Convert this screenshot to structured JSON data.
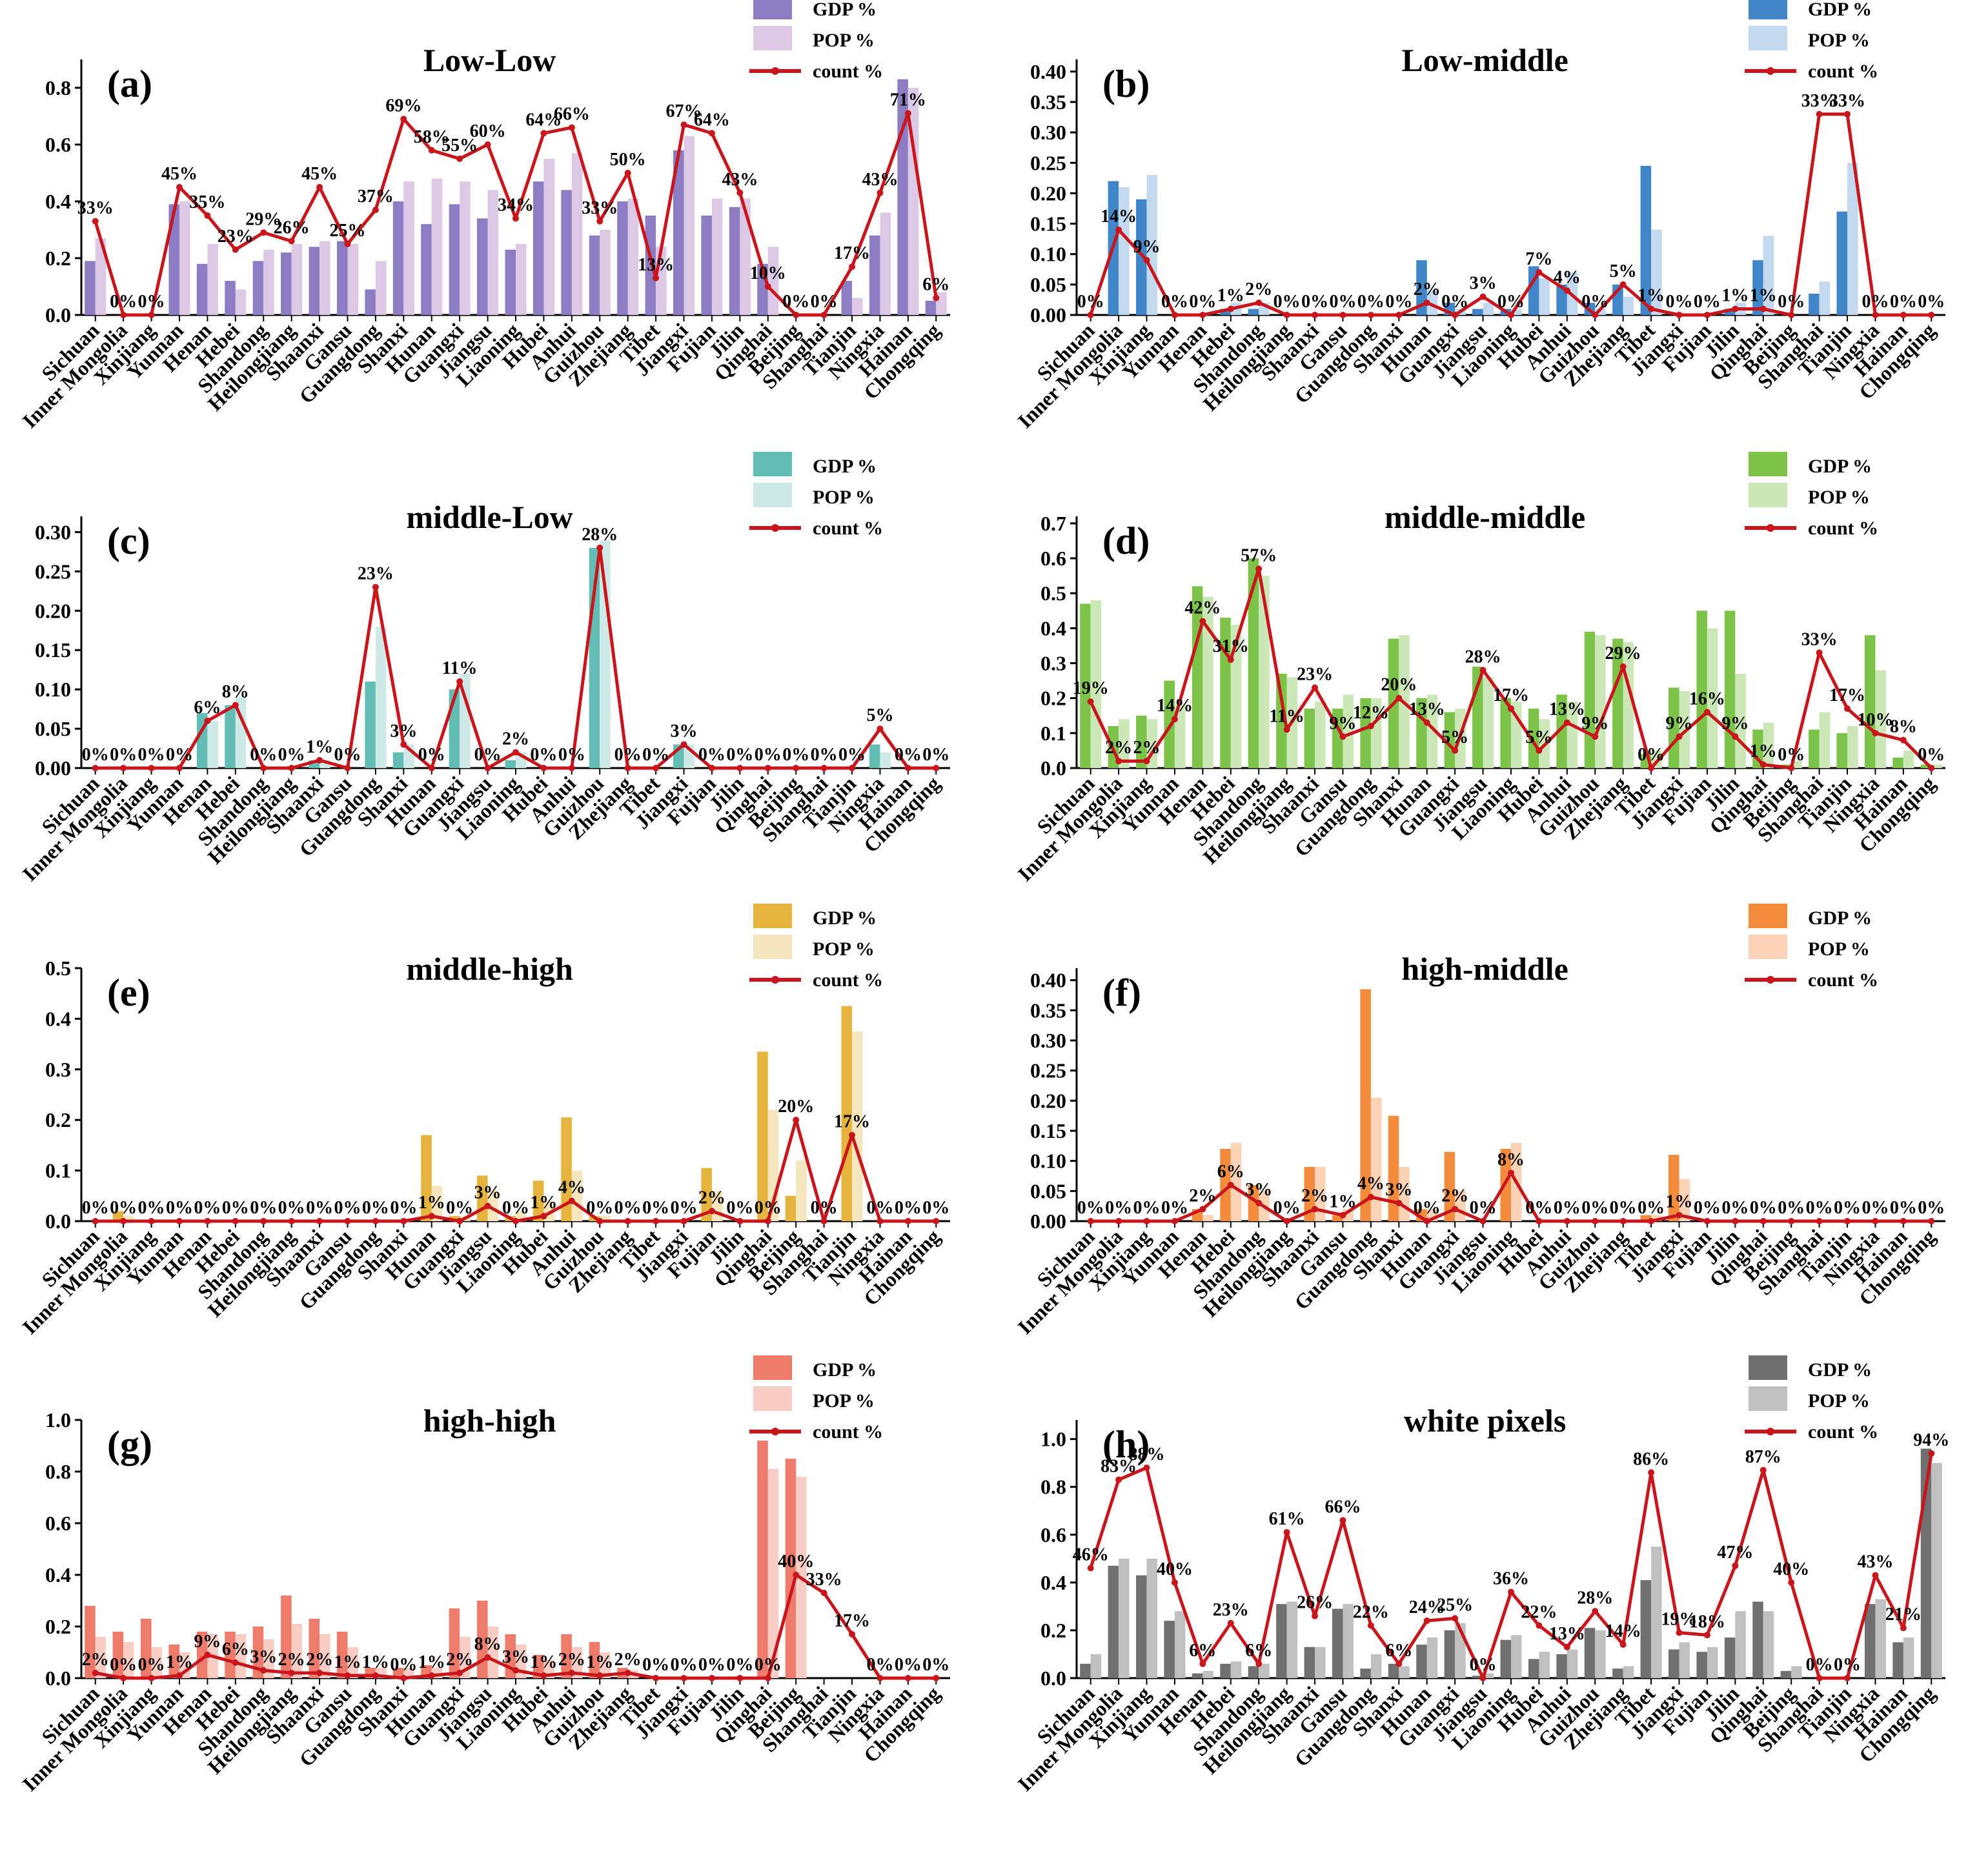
{
  "provinces": [
    "Sichuan",
    "Inner Mongolia",
    "Xinjiang",
    "Yunnan",
    "Henan",
    "Hebei",
    "Shandong",
    "Heilongjiang",
    "Shaanxi",
    "Gansu",
    "Guangdong",
    "Shanxi",
    "Hunan",
    "Guangxi",
    "Jiangsu",
    "Liaoning",
    "Hubei",
    "Anhui",
    "Guizhou",
    "Zhejiang",
    "Tibet",
    "Jiangxi",
    "Fujian",
    "Jilin",
    "Qinghai",
    "Beijing",
    "Shanghai",
    "Tianjin",
    "Ningxia",
    "Hainan",
    "Chongqing"
  ],
  "chart_data": [
    {
      "id": "a",
      "type": "bar",
      "panel_label": "(a)",
      "title": "Low-Low",
      "legend": [
        "GDP %",
        "POP %",
        "count %"
      ],
      "colors": {
        "gdp": "#8c7cc4",
        "pop": "#dcc9e6",
        "count": "#c8161c"
      },
      "ylim": [
        0,
        0.9
      ],
      "yticks": [
        "0.0",
        "0.2",
        "0.4",
        "0.6",
        "0.8"
      ],
      "ytick_values": [
        0,
        0.2,
        0.4,
        0.6,
        0.8
      ],
      "gdp": [
        0.19,
        0.0,
        0.0,
        0.39,
        0.18,
        0.12,
        0.19,
        0.22,
        0.24,
        0.26,
        0.09,
        0.4,
        0.32,
        0.39,
        0.34,
        0.23,
        0.47,
        0.44,
        0.28,
        0.4,
        0.35,
        0.58,
        0.35,
        0.38,
        0.18,
        0.0,
        0.0,
        0.12,
        0.28,
        0.83,
        0.05
      ],
      "pop": [
        0.27,
        0.0,
        0.0,
        0.4,
        0.25,
        0.09,
        0.23,
        0.25,
        0.26,
        0.25,
        0.19,
        0.47,
        0.48,
        0.47,
        0.44,
        0.25,
        0.55,
        0.57,
        0.3,
        0.41,
        0.24,
        0.63,
        0.41,
        0.41,
        0.24,
        0.0,
        0.0,
        0.06,
        0.36,
        0.8,
        0.08
      ],
      "count": [
        0.33,
        0.0,
        0.0,
        0.45,
        0.35,
        0.23,
        0.29,
        0.26,
        0.45,
        0.25,
        0.37,
        0.69,
        0.58,
        0.55,
        0.6,
        0.34,
        0.64,
        0.66,
        0.33,
        0.5,
        0.13,
        0.67,
        0.64,
        0.43,
        0.1,
        0.0,
        0.0,
        0.17,
        0.43,
        0.71,
        0.06
      ],
      "count_labels": [
        "33%",
        "0%",
        "0%",
        "45%",
        "35%",
        "23%",
        "29%",
        "26%",
        "45%",
        "25%",
        "37%",
        "69%",
        "58%",
        "55%",
        "60%",
        "34%",
        "64%",
        "66%",
        "33%",
        "50%",
        "13%",
        "67%",
        "64%",
        "43%",
        "10%",
        "0%",
        "0%",
        "17%",
        "43%",
        "71%",
        "6%"
      ]
    },
    {
      "id": "b",
      "type": "bar",
      "panel_label": "(b)",
      "title": "Low-middle",
      "legend": [
        "GDP %",
        "POP %",
        "count %"
      ],
      "colors": {
        "gdp": "#3f86c8",
        "pop": "#c3d9f0",
        "count": "#c8161c"
      },
      "ylim": [
        0,
        0.42
      ],
      "yticks": [
        "0.00",
        "0.05",
        "0.10",
        "0.15",
        "0.20",
        "0.25",
        "0.30",
        "0.35",
        "0.40"
      ],
      "ytick_values": [
        0,
        0.05,
        0.1,
        0.15,
        0.2,
        0.25,
        0.3,
        0.35,
        0.4
      ],
      "gdp": [
        0.0,
        0.22,
        0.19,
        0.0,
        0.0,
        0.01,
        0.01,
        0.0,
        0.0,
        0.0,
        0.0,
        0.0,
        0.09,
        0.02,
        0.01,
        0.01,
        0.08,
        0.05,
        0.02,
        0.05,
        0.245,
        0.0,
        0.0,
        0.01,
        0.09,
        0.0,
        0.035,
        0.17,
        0.0,
        0.0,
        0.0
      ],
      "pop": [
        0.0,
        0.21,
        0.23,
        0.0,
        0.0,
        0.02,
        0.02,
        0.0,
        0.0,
        0.0,
        0.0,
        0.0,
        0.04,
        0.01,
        0.02,
        0.01,
        0.06,
        0.07,
        0.01,
        0.03,
        0.14,
        0.0,
        0.0,
        0.02,
        0.13,
        0.0,
        0.055,
        0.25,
        0.0,
        0.0,
        0.0
      ],
      "count": [
        0.0,
        0.14,
        0.09,
        0.0,
        0.0,
        0.01,
        0.02,
        0.0,
        0.0,
        0.0,
        0.0,
        0.0,
        0.02,
        0.0,
        0.03,
        0.0,
        0.07,
        0.04,
        0.0,
        0.05,
        0.01,
        0.0,
        0.0,
        0.01,
        0.01,
        0.0,
        0.33,
        0.33,
        0.0,
        0.0,
        0.0
      ],
      "count_labels": [
        "0%",
        "14%",
        "9%",
        "0%",
        "0%",
        "1%",
        "2%",
        "0%",
        "0%",
        "0%",
        "0%",
        "0%",
        "2%",
        "0%",
        "3%",
        "0%",
        "7%",
        "4%",
        "0%",
        "5%",
        "1%",
        "0%",
        "0%",
        "1%",
        "1%",
        "0%",
        "33%",
        "33%",
        "0%",
        "0%",
        "0%"
      ]
    },
    {
      "id": "c",
      "type": "bar",
      "panel_label": "(c)",
      "title": "middle-Low",
      "legend": [
        "GDP %",
        "POP %",
        "count %"
      ],
      "colors": {
        "gdp": "#62bdb4",
        "pop": "#cdeae6",
        "count": "#c8161c"
      },
      "ylim": [
        0,
        0.32
      ],
      "yticks": [
        "0.00",
        "0.05",
        "0.10",
        "0.15",
        "0.20",
        "0.25",
        "0.30"
      ],
      "ytick_values": [
        0,
        0.05,
        0.1,
        0.15,
        0.2,
        0.25,
        0.3
      ],
      "gdp": [
        0.0,
        0.0,
        0.0,
        0.0,
        0.07,
        0.08,
        0.0,
        0.0,
        0.01,
        0.0,
        0.11,
        0.02,
        0.0,
        0.1,
        0.0,
        0.01,
        0.0,
        0.0,
        0.28,
        0.0,
        0.0,
        0.03,
        0.0,
        0.0,
        0.0,
        0.0,
        0.0,
        0.0,
        0.03,
        0.0,
        0.0
      ],
      "pop": [
        0.0,
        0.0,
        0.0,
        0.0,
        0.06,
        0.09,
        0.0,
        0.0,
        0.01,
        0.0,
        0.18,
        0.03,
        0.0,
        0.12,
        0.0,
        0.02,
        0.0,
        0.0,
        0.29,
        0.0,
        0.0,
        0.03,
        0.0,
        0.0,
        0.0,
        0.0,
        0.0,
        0.0,
        0.02,
        0.0,
        0.0
      ],
      "count": [
        0.0,
        0.0,
        0.0,
        0.0,
        0.06,
        0.08,
        0.0,
        0.0,
        0.01,
        0.0,
        0.23,
        0.03,
        0.0,
        0.11,
        0.0,
        0.02,
        0.0,
        0.0,
        0.28,
        0.0,
        0.0,
        0.03,
        0.0,
        0.0,
        0.0,
        0.0,
        0.0,
        0.0,
        0.05,
        0.0,
        0.0
      ],
      "count_labels": [
        "0%",
        "0%",
        "0%",
        "0%",
        "6%",
        "8%",
        "0%",
        "0%",
        "1%",
        "0%",
        "23%",
        "3%",
        "0%",
        "11%",
        "0%",
        "2%",
        "0%",
        "0%",
        "28%",
        "0%",
        "0%",
        "3%",
        "0%",
        "0%",
        "0%",
        "0%",
        "0%",
        "0%",
        "5%",
        "0%",
        "0%"
      ]
    },
    {
      "id": "d",
      "type": "bar",
      "panel_label": "(d)",
      "title": "middle-middle",
      "legend": [
        "GDP %",
        "POP %",
        "count %"
      ],
      "colors": {
        "gdp": "#7cc448",
        "pop": "#cde8b8",
        "count": "#c8161c"
      },
      "ylim": [
        0,
        0.72
      ],
      "yticks": [
        "0.0",
        "0.1",
        "0.2",
        "0.3",
        "0.4",
        "0.5",
        "0.6",
        "0.7"
      ],
      "ytick_values": [
        0,
        0.1,
        0.2,
        0.3,
        0.4,
        0.5,
        0.6,
        0.7
      ],
      "gdp": [
        0.47,
        0.12,
        0.15,
        0.25,
        0.52,
        0.43,
        0.6,
        0.27,
        0.17,
        0.17,
        0.2,
        0.37,
        0.2,
        0.16,
        0.29,
        0.2,
        0.17,
        0.21,
        0.39,
        0.37,
        0.04,
        0.23,
        0.45,
        0.45,
        0.11,
        0.01,
        0.11,
        0.1,
        0.38,
        0.03,
        0.01
      ],
      "pop": [
        0.48,
        0.14,
        0.14,
        0.18,
        0.49,
        0.41,
        0.55,
        0.26,
        0.19,
        0.21,
        0.2,
        0.38,
        0.21,
        0.17,
        0.26,
        0.19,
        0.14,
        0.19,
        0.38,
        0.36,
        0.05,
        0.22,
        0.4,
        0.27,
        0.13,
        0.02,
        0.16,
        0.12,
        0.28,
        0.05,
        0.01
      ],
      "count": [
        0.19,
        0.02,
        0.02,
        0.14,
        0.42,
        0.31,
        0.57,
        0.11,
        0.23,
        0.09,
        0.12,
        0.2,
        0.13,
        0.05,
        0.28,
        0.17,
        0.05,
        0.13,
        0.09,
        0.29,
        0.0,
        0.09,
        0.16,
        0.09,
        0.01,
        0.0,
        0.33,
        0.17,
        0.1,
        0.08,
        0.0
      ],
      "count_labels": [
        "19%",
        "2%",
        "2%",
        "14%",
        "42%",
        "31%",
        "57%",
        "11%",
        "23%",
        "9%",
        "12%",
        "20%",
        "13%",
        "5%",
        "28%",
        "17%",
        "5%",
        "13%",
        "9%",
        "29%",
        "0%",
        "9%",
        "16%",
        "9%",
        "1%",
        "0%",
        "33%",
        "17%",
        "10%",
        "8%",
        "0%"
      ]
    },
    {
      "id": "e",
      "type": "bar",
      "panel_label": "(e)",
      "title": "middle-high",
      "legend": [
        "GDP %",
        "POP %",
        "count %"
      ],
      "colors": {
        "gdp": "#e6b43c",
        "pop": "#f5e6bd",
        "count": "#c8161c"
      },
      "ylim": [
        0,
        0.5
      ],
      "yticks": [
        "0.0",
        "0.1",
        "0.2",
        "0.3",
        "0.4",
        "0.5"
      ],
      "ytick_values": [
        0,
        0.1,
        0.2,
        0.3,
        0.4,
        0.5
      ],
      "gdp": [
        0.0,
        0.02,
        0.0,
        0.0,
        0.0,
        0.0,
        0.0,
        0.0,
        0.0,
        0.0,
        0.0,
        0.0,
        0.17,
        0.01,
        0.09,
        0.01,
        0.08,
        0.205,
        0.01,
        0.0,
        0.0,
        0.0,
        0.105,
        0.0,
        0.335,
        0.05,
        0.0,
        0.425,
        0.0,
        0.0,
        0.0
      ],
      "pop": [
        0.0,
        0.01,
        0.0,
        0.0,
        0.0,
        0.0,
        0.0,
        0.0,
        0.0,
        0.0,
        0.0,
        0.0,
        0.07,
        0.01,
        0.06,
        0.02,
        0.04,
        0.1,
        0.01,
        0.0,
        0.0,
        0.0,
        0.06,
        0.0,
        0.22,
        0.12,
        0.0,
        0.375,
        0.0,
        0.0,
        0.0
      ],
      "count": [
        0.0,
        0.0,
        0.0,
        0.0,
        0.0,
        0.0,
        0.0,
        0.0,
        0.0,
        0.0,
        0.0,
        0.0,
        0.01,
        0.0,
        0.03,
        0.0,
        0.01,
        0.04,
        0.0,
        0.0,
        0.0,
        0.0,
        0.02,
        0.0,
        0.0,
        0.2,
        0.0,
        0.17,
        0.0,
        0.0,
        0.0
      ],
      "count_labels": [
        "0%",
        "0%",
        "0%",
        "0%",
        "0%",
        "0%",
        "0%",
        "0%",
        "0%",
        "0%",
        "0%",
        "0%",
        "1%",
        "0%",
        "3%",
        "0%",
        "1%",
        "4%",
        "0%",
        "0%",
        "0%",
        "0%",
        "2%",
        "0%",
        "0%",
        "20%",
        "0%",
        "17%",
        "0%",
        "0%",
        "0%"
      ]
    },
    {
      "id": "f",
      "type": "bar",
      "panel_label": "(f)",
      "title": "high-middle",
      "legend": [
        "GDP %",
        "POP %",
        "count %"
      ],
      "colors": {
        "gdp": "#f28c3c",
        "pop": "#fbd4b8",
        "count": "#c8161c"
      },
      "ylim": [
        0,
        0.42
      ],
      "yticks": [
        "0.00",
        "0.05",
        "0.10",
        "0.15",
        "0.20",
        "0.25",
        "0.30",
        "0.35",
        "0.40"
      ],
      "ytick_values": [
        0,
        0.05,
        0.1,
        0.15,
        0.2,
        0.25,
        0.3,
        0.35,
        0.4
      ],
      "gdp": [
        0.0,
        0.0,
        0.0,
        0.0,
        0.02,
        0.12,
        0.06,
        0.0,
        0.09,
        0.01,
        0.385,
        0.175,
        0.02,
        0.115,
        0.0,
        0.12,
        0.0,
        0.0,
        0.0,
        0.0,
        0.01,
        0.11,
        0.0,
        0.0,
        0.0,
        0.0,
        0.0,
        0.0,
        0.0,
        0.0,
        0.0
      ],
      "pop": [
        0.0,
        0.0,
        0.0,
        0.0,
        0.01,
        0.13,
        0.05,
        0.0,
        0.09,
        0.02,
        0.205,
        0.09,
        0.02,
        0.05,
        0.0,
        0.13,
        0.0,
        0.0,
        0.0,
        0.0,
        0.01,
        0.07,
        0.0,
        0.0,
        0.0,
        0.0,
        0.0,
        0.0,
        0.0,
        0.0,
        0.0
      ],
      "count": [
        0.0,
        0.0,
        0.0,
        0.0,
        0.02,
        0.06,
        0.03,
        0.0,
        0.02,
        0.01,
        0.04,
        0.03,
        0.0,
        0.02,
        0.0,
        0.08,
        0.0,
        0.0,
        0.0,
        0.0,
        0.0,
        0.01,
        0.0,
        0.0,
        0.0,
        0.0,
        0.0,
        0.0,
        0.0,
        0.0,
        0.0
      ],
      "count_labels": [
        "0%",
        "0%",
        "0%",
        "0%",
        "2%",
        "6%",
        "3%",
        "0%",
        "2%",
        "1%",
        "4%",
        "3%",
        "0%",
        "2%",
        "0%",
        "8%",
        "0%",
        "0%",
        "0%",
        "0%",
        "0%",
        "1%",
        "0%",
        "0%",
        "0%",
        "0%",
        "0%",
        "0%",
        "0%",
        "0%",
        "0%"
      ]
    },
    {
      "id": "g",
      "type": "bar",
      "panel_label": "(g)",
      "title": "high-high",
      "legend": [
        "GDP %",
        "POP %",
        "count %"
      ],
      "colors": {
        "gdp": "#ee7a6a",
        "pop": "#f8cdc4",
        "count": "#c8161c"
      },
      "ylim": [
        0,
        1.0
      ],
      "yticks": [
        "0.0",
        "0.2",
        "0.4",
        "0.6",
        "0.8",
        "1.0"
      ],
      "ytick_values": [
        0,
        0.2,
        0.4,
        0.6,
        0.8,
        1.0
      ],
      "gdp": [
        0.28,
        0.18,
        0.23,
        0.13,
        0.18,
        0.18,
        0.2,
        0.32,
        0.23,
        0.18,
        0.04,
        0.04,
        0.05,
        0.27,
        0.3,
        0.17,
        0.09,
        0.17,
        0.14,
        0.04,
        0.0,
        0.0,
        0.0,
        0.0,
        0.92,
        0.85,
        0.0,
        0.0,
        0.0,
        0.0,
        0.0
      ],
      "pop": [
        0.16,
        0.14,
        0.12,
        0.1,
        0.17,
        0.17,
        0.15,
        0.21,
        0.17,
        0.12,
        0.04,
        0.04,
        0.04,
        0.16,
        0.2,
        0.13,
        0.07,
        0.12,
        0.1,
        0.03,
        0.0,
        0.0,
        0.0,
        0.0,
        0.81,
        0.78,
        0.0,
        0.0,
        0.0,
        0.0,
        0.0
      ],
      "count": [
        0.02,
        0.0,
        0.0,
        0.01,
        0.09,
        0.06,
        0.03,
        0.02,
        0.02,
        0.01,
        0.01,
        0.0,
        0.01,
        0.02,
        0.08,
        0.03,
        0.01,
        0.02,
        0.01,
        0.02,
        0.0,
        0.0,
        0.0,
        0.0,
        0.0,
        0.4,
        0.33,
        0.17,
        0.0,
        0.0,
        0.0
      ],
      "count_labels": [
        "2%",
        "0%",
        "0%",
        "1%",
        "9%",
        "6%",
        "3%",
        "2%",
        "2%",
        "1%",
        "1%",
        "0%",
        "1%",
        "2%",
        "8%",
        "3%",
        "1%",
        "2%",
        "1%",
        "2%",
        "0%",
        "0%",
        "0%",
        "0%",
        "0%",
        "40%",
        "33%",
        "17%",
        "0%",
        "0%",
        "0%"
      ]
    },
    {
      "id": "h",
      "type": "bar",
      "panel_label": "(h)",
      "title": "white pixels",
      "legend": [
        "GDP %",
        "POP %",
        "count %"
      ],
      "colors": {
        "gdp": "#707070",
        "pop": "#c0c0c0",
        "count": "#c8161c"
      },
      "ylim": [
        0,
        1.08
      ],
      "yticks": [
        "0.0",
        "0.2",
        "0.4",
        "0.6",
        "0.8",
        "1.0"
      ],
      "ytick_values": [
        0,
        0.2,
        0.4,
        0.6,
        0.8,
        1.0
      ],
      "gdp": [
        0.06,
        0.47,
        0.43,
        0.24,
        0.02,
        0.06,
        0.05,
        0.31,
        0.13,
        0.29,
        0.04,
        0.06,
        0.14,
        0.2,
        0.01,
        0.16,
        0.08,
        0.1,
        0.21,
        0.04,
        0.41,
        0.12,
        0.11,
        0.17,
        0.32,
        0.03,
        0.0,
        0.0,
        0.31,
        0.15,
        0.96
      ],
      "pop": [
        0.1,
        0.5,
        0.5,
        0.28,
        0.03,
        0.07,
        0.06,
        0.32,
        0.13,
        0.31,
        0.1,
        0.05,
        0.17,
        0.23,
        0.02,
        0.18,
        0.11,
        0.12,
        0.2,
        0.05,
        0.55,
        0.15,
        0.13,
        0.28,
        0.28,
        0.05,
        0.0,
        0.0,
        0.33,
        0.17,
        0.9
      ],
      "count": [
        0.46,
        0.83,
        0.88,
        0.4,
        0.06,
        0.23,
        0.06,
        0.61,
        0.26,
        0.66,
        0.22,
        0.06,
        0.24,
        0.25,
        0.0,
        0.36,
        0.22,
        0.13,
        0.28,
        0.14,
        0.86,
        0.19,
        0.18,
        0.47,
        0.87,
        0.4,
        0.0,
        0.0,
        0.43,
        0.21,
        0.94
      ],
      "count_labels": [
        "46%",
        "83%",
        "88%",
        "40%",
        "6%",
        "23%",
        "6%",
        "61%",
        "26%",
        "66%",
        "22%",
        "6%",
        "24%",
        "25%",
        "0%",
        "36%",
        "22%",
        "13%",
        "28%",
        "14%",
        "86%",
        "19%",
        "18%",
        "47%",
        "87%",
        "40%",
        "0%",
        "0%",
        "43%",
        "21%",
        "94%"
      ]
    }
  ]
}
